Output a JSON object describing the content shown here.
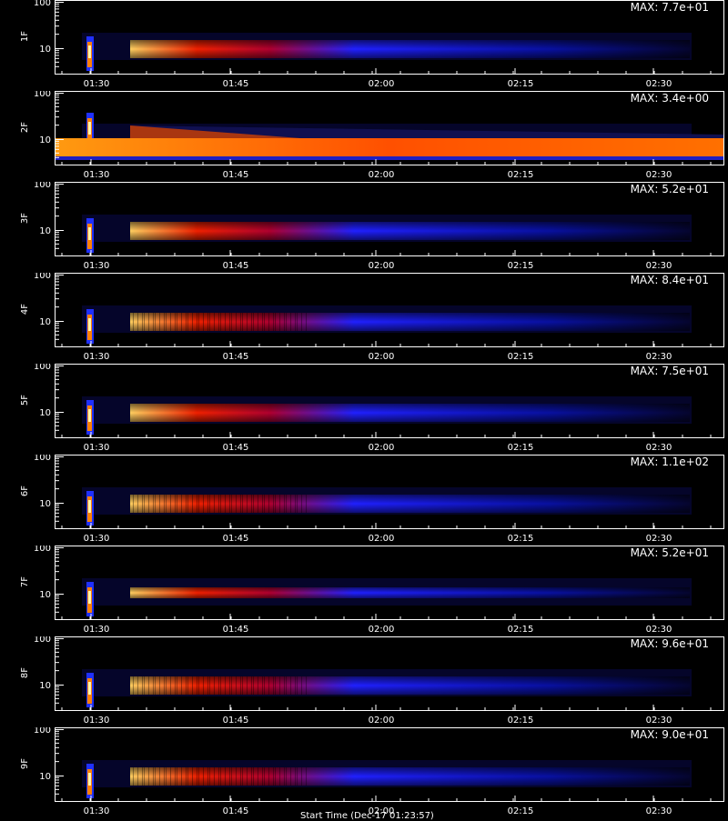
{
  "chart_data": {
    "type": "heatmap",
    "colormap": "black-blue-red-yellow-white",
    "background": "#000000",
    "x_ticks": [
      "01:30",
      "01:45",
      "02:00",
      "02:15",
      "02:30"
    ],
    "y_ticks": [
      "10",
      "100"
    ],
    "y_scale": "log",
    "footer": "Start Time (Dec-17 01:23:57)",
    "panels": [
      {
        "label": "1F",
        "max_label": "MAX: 7.7e+01",
        "max": 77,
        "band": "narrow"
      },
      {
        "label": "2F",
        "max_label": "MAX: 3.4e+00",
        "max": 3.4,
        "band": "persistent"
      },
      {
        "label": "3F",
        "max_label": "MAX: 5.2e+01",
        "max": 52,
        "band": "narrow"
      },
      {
        "label": "4F",
        "max_label": "MAX: 8.4e+01",
        "max": 84,
        "band": "striated"
      },
      {
        "label": "5F",
        "max_label": "MAX: 7.5e+01",
        "max": 75,
        "band": "narrow"
      },
      {
        "label": "6F",
        "max_label": "MAX: 1.1e+02",
        "max": 110,
        "band": "striated"
      },
      {
        "label": "7F",
        "max_label": "MAX: 5.2e+01",
        "max": 52,
        "band": "thin"
      },
      {
        "label": "8F",
        "max_label": "MAX: 9.6e+01",
        "max": 96,
        "band": "striated"
      },
      {
        "label": "9F",
        "max_label": "MAX: 9.0e+01",
        "max": 90,
        "band": "striated"
      }
    ]
  }
}
